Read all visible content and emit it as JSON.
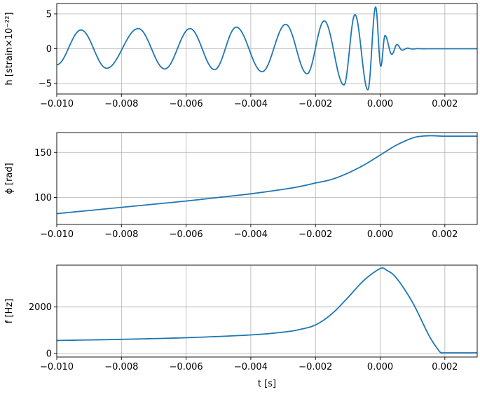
{
  "chart_data": [
    {
      "type": "line",
      "ylabel": "h [strain×10⁻²²]",
      "xlabel": "",
      "xlim": [
        -0.01,
        0.003
      ],
      "ylim": [
        -6.5,
        6.5
      ],
      "grid": true,
      "x_ticks": [
        -0.01,
        -0.008,
        -0.006,
        -0.004,
        -0.002,
        0.0,
        0.002
      ],
      "x_tick_labels": [
        "−0.010",
        "−0.008",
        "−0.006",
        "−0.004",
        "−0.002",
        "0.000",
        "0.002"
      ],
      "y_ticks": [
        -5,
        0,
        5
      ],
      "y_tick_labels": [
        "−5",
        "0",
        "5"
      ],
      "line_color": "#1f77b4",
      "series": [
        {
          "description": "strain waveform (chirp): oscillation with amplitude rising from ~2.7 to ~6 and frequency increasing until the merger near t=0, then ringdown to zero",
          "peak_times": [
            -0.00925,
            -0.00748,
            -0.00588,
            -0.00445,
            -0.00292,
            -0.00173,
            -0.00078,
            -0.00014,
            0.00015,
            0.00052
          ],
          "peak_values": [
            2.7,
            2.9,
            2.9,
            3.1,
            3.5,
            4.0,
            4.9,
            6.0,
            1.9,
            0.6
          ],
          "trough_times": [
            -0.00846,
            -0.00666,
            -0.00512,
            -0.00365,
            -0.00226,
            -0.00112,
            -0.00038,
            2e-05,
            0.00036,
            0.00068
          ],
          "trough_values": [
            -2.8,
            -2.9,
            -3.0,
            -3.3,
            -3.6,
            -5.2,
            -5.9,
            -2.5,
            -0.8,
            -0.2
          ],
          "end_value": 0.0,
          "start_value": -2.3
        }
      ]
    },
    {
      "type": "line",
      "ylabel": "ϕ [rad]",
      "xlabel": "",
      "xlim": [
        -0.01,
        0.003
      ],
      "ylim": [
        70,
        172
      ],
      "grid": true,
      "x_ticks": [
        -0.01,
        -0.008,
        -0.006,
        -0.004,
        -0.002,
        0.0,
        0.002
      ],
      "x_tick_labels": [
        "−0.010",
        "−0.008",
        "−0.006",
        "−0.004",
        "−0.002",
        "0.000",
        "0.002"
      ],
      "y_ticks": [
        100,
        150
      ],
      "y_tick_labels": [
        "100",
        "150"
      ],
      "line_color": "#1f77b4",
      "series": [
        {
          "x": [
            -0.01,
            -0.009,
            -0.008,
            -0.007,
            -0.006,
            -0.005,
            -0.004,
            -0.003,
            -0.0025,
            -0.002,
            -0.0015,
            -0.001,
            -0.0005,
            0.0,
            0.0005,
            0.001,
            0.0013,
            0.0016,
            0.002,
            0.003
          ],
          "y": [
            82,
            85.5,
            89,
            92.5,
            96,
            100,
            104,
            109,
            112,
            116,
            120,
            127,
            136,
            147,
            158,
            166,
            168,
            168.5,
            168,
            168
          ]
        }
      ]
    },
    {
      "type": "line",
      "ylabel": "f [Hz]",
      "xlabel": "t [s]",
      "xlim": [
        -0.01,
        0.003
      ],
      "ylim": [
        -150,
        3800
      ],
      "grid": true,
      "x_ticks": [
        -0.01,
        -0.008,
        -0.006,
        -0.004,
        -0.002,
        0.0,
        0.002
      ],
      "x_tick_labels": [
        "−0.010",
        "−0.008",
        "−0.006",
        "−0.004",
        "−0.002",
        "0.000",
        "0.002"
      ],
      "y_ticks": [
        0,
        2000
      ],
      "y_tick_labels": [
        "0",
        "2000"
      ],
      "line_color": "#1f77b4",
      "series": [
        {
          "x": [
            -0.01,
            -0.008,
            -0.006,
            -0.004,
            -0.003,
            -0.0025,
            -0.002,
            -0.0015,
            -0.001,
            -0.0005,
            0.0,
            0.0002,
            0.0005,
            0.001,
            0.0015,
            0.0018,
            0.0019,
            0.002,
            0.003
          ],
          "y": [
            560,
            610,
            680,
            800,
            920,
            1030,
            1230,
            1700,
            2400,
            3150,
            3650,
            3580,
            3250,
            2200,
            800,
            150,
            30,
            30,
            30
          ]
        }
      ]
    }
  ]
}
